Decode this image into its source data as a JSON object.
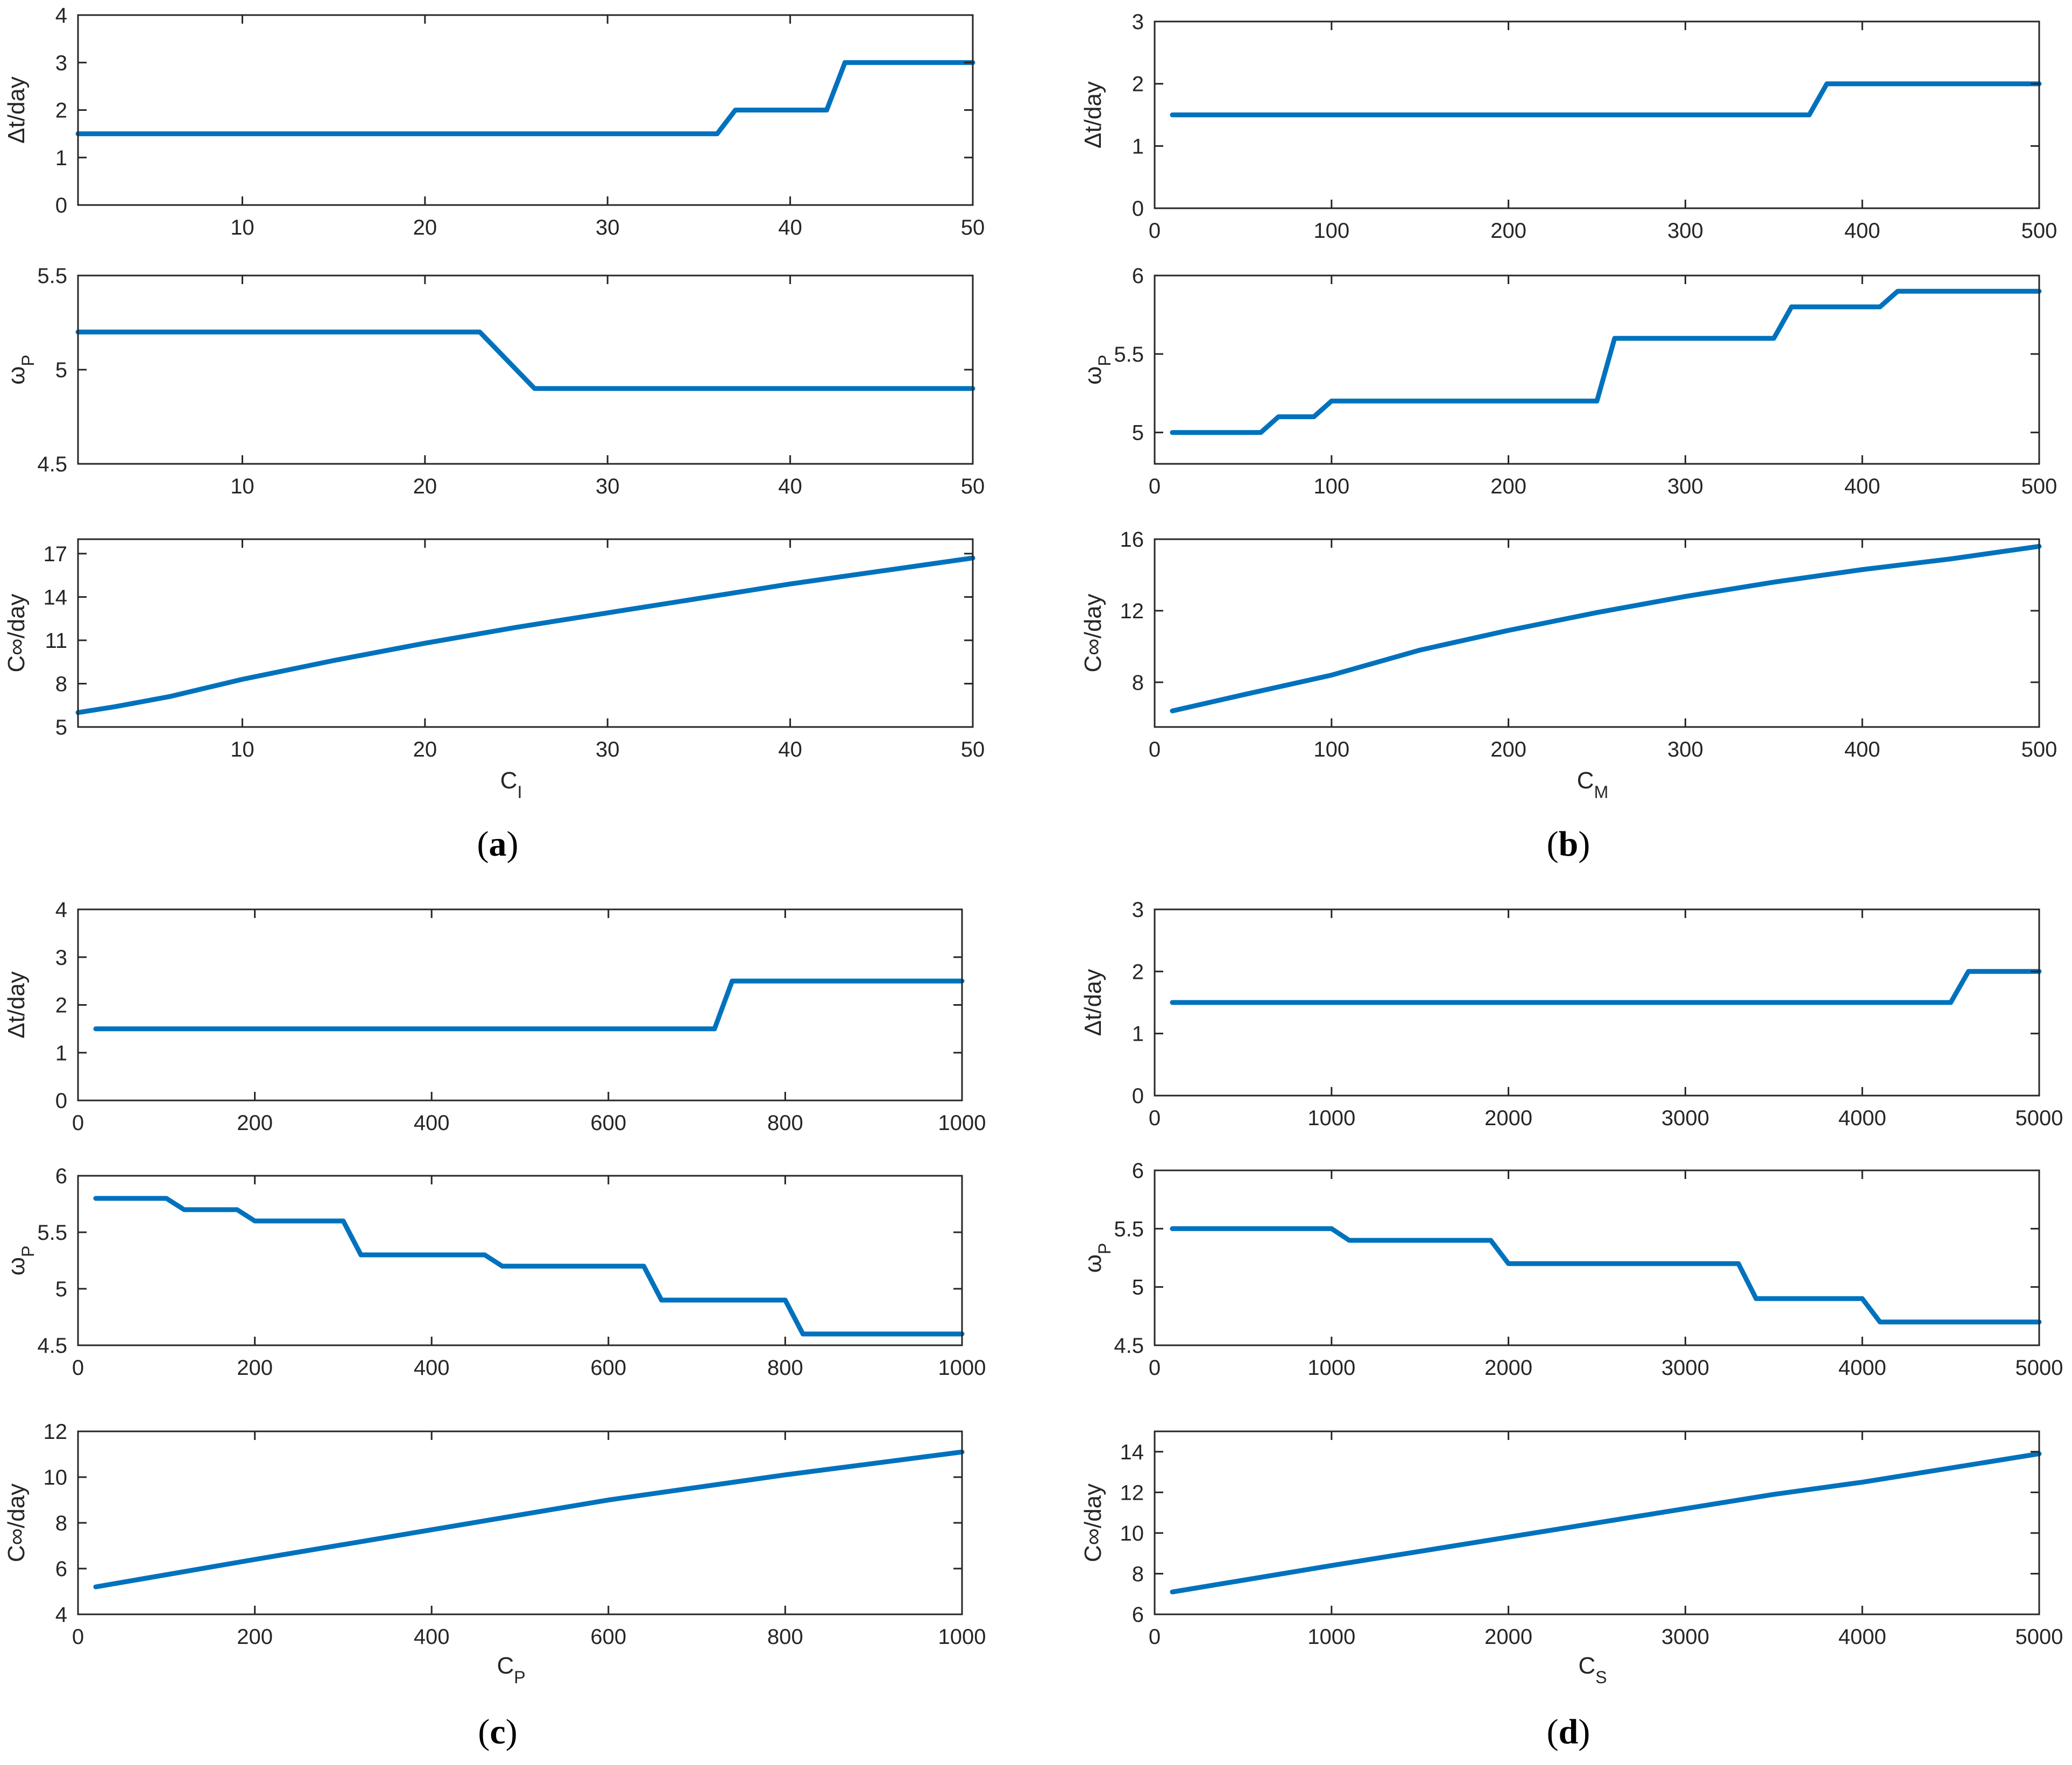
{
  "colors": {
    "series": "#0072BD",
    "axis": "#262626",
    "background": "#ffffff"
  },
  "chart_data": [
    {
      "panel": "a",
      "caption_letter": "a",
      "xlabel_main": "C",
      "xlabel_sub": "I",
      "subplots": [
        {
          "type": "line",
          "ylabel_main": "Δt/day",
          "ylabel_sub": "",
          "xlim": [
            1,
            50
          ],
          "ylim": [
            0,
            4
          ],
          "xticks": [
            10,
            20,
            30,
            40,
            50
          ],
          "yticks": [
            0,
            1,
            2,
            3,
            4
          ],
          "x": [
            1,
            36,
            37,
            42,
            43,
            50
          ],
          "y": [
            1.5,
            1.5,
            2,
            2,
            3,
            3
          ]
        },
        {
          "type": "line",
          "ylabel_main": "ω",
          "ylabel_sub": "P",
          "xlim": [
            1,
            50
          ],
          "ylim": [
            4.5,
            5.5
          ],
          "xticks": [
            10,
            20,
            30,
            40,
            50
          ],
          "yticks": [
            4.5,
            5,
            5.5
          ],
          "x": [
            1,
            23,
            26,
            50
          ],
          "y": [
            5.2,
            5.2,
            4.9,
            4.9
          ]
        },
        {
          "type": "line",
          "ylabel_main": "C∞/day",
          "ylabel_sub": "",
          "xlim": [
            1,
            50
          ],
          "ylim": [
            5,
            18
          ],
          "xticks": [
            10,
            20,
            30,
            40,
            50
          ],
          "yticks": [
            5,
            8,
            11,
            14,
            17
          ],
          "x": [
            1,
            3,
            6,
            10,
            15,
            20,
            25,
            30,
            35,
            40,
            45,
            50
          ],
          "y": [
            6.0,
            6.4,
            7.1,
            8.3,
            9.6,
            10.8,
            11.9,
            12.9,
            13.9,
            14.9,
            15.8,
            16.7
          ]
        }
      ]
    },
    {
      "panel": "b",
      "caption_letter": "b",
      "xlabel_main": "C",
      "xlabel_sub": "M",
      "subplots": [
        {
          "type": "line",
          "ylabel_main": "Δt/day",
          "ylabel_sub": "",
          "xlim": [
            0,
            500
          ],
          "ylim": [
            0,
            3
          ],
          "xticks": [
            0,
            100,
            200,
            300,
            400,
            500
          ],
          "yticks": [
            0,
            1,
            2,
            3
          ],
          "x": [
            10,
            370,
            380,
            500
          ],
          "y": [
            1.5,
            1.5,
            2,
            2
          ]
        },
        {
          "type": "line",
          "ylabel_main": "ω",
          "ylabel_sub": "P",
          "xlim": [
            0,
            500
          ],
          "ylim": [
            4.8,
            6
          ],
          "xticks": [
            0,
            100,
            200,
            300,
            400,
            500
          ],
          "yticks": [
            5,
            5.5,
            6
          ],
          "x": [
            10,
            60,
            70,
            90,
            100,
            250,
            260,
            350,
            360,
            410,
            420,
            500
          ],
          "y": [
            5,
            5,
            5.1,
            5.1,
            5.2,
            5.2,
            5.6,
            5.6,
            5.8,
            5.8,
            5.9,
            5.9
          ]
        },
        {
          "type": "line",
          "ylabel_main": "C∞/day",
          "ylabel_sub": "",
          "xlim": [
            0,
            500
          ],
          "ylim": [
            5.5,
            16
          ],
          "xticks": [
            0,
            100,
            200,
            300,
            400,
            500
          ],
          "yticks": [
            8,
            12,
            16
          ],
          "x": [
            10,
            50,
            100,
            150,
            200,
            250,
            300,
            350,
            400,
            450,
            500
          ],
          "y": [
            6.4,
            7.3,
            8.4,
            9.8,
            10.9,
            11.9,
            12.8,
            13.6,
            14.3,
            14.9,
            15.6
          ]
        }
      ]
    },
    {
      "panel": "c",
      "caption_letter": "c",
      "xlabel_main": "C",
      "xlabel_sub": "P",
      "subplots": [
        {
          "type": "line",
          "ylabel_main": "Δt/day",
          "ylabel_sub": "",
          "xlim": [
            0,
            1000
          ],
          "ylim": [
            0,
            4
          ],
          "xticks": [
            0,
            200,
            400,
            600,
            800,
            1000
          ],
          "yticks": [
            0,
            1,
            2,
            3,
            4
          ],
          "x": [
            20,
            720,
            740,
            1000
          ],
          "y": [
            1.5,
            1.5,
            2.5,
            2.5
          ]
        },
        {
          "type": "line",
          "ylabel_main": "ω",
          "ylabel_sub": "P",
          "xlim": [
            0,
            1000
          ],
          "ylim": [
            4.5,
            6
          ],
          "xticks": [
            0,
            200,
            400,
            600,
            800,
            1000
          ],
          "yticks": [
            4.5,
            5,
            5.5,
            6
          ],
          "x": [
            20,
            100,
            120,
            180,
            200,
            300,
            320,
            460,
            480,
            640,
            660,
            800,
            820,
            1000
          ],
          "y": [
            5.8,
            5.8,
            5.7,
            5.7,
            5.6,
            5.6,
            5.3,
            5.3,
            5.2,
            5.2,
            4.9,
            4.9,
            4.6,
            4.6
          ]
        },
        {
          "type": "line",
          "ylabel_main": "C∞/day",
          "ylabel_sub": "",
          "xlim": [
            0,
            1000
          ],
          "ylim": [
            4,
            12
          ],
          "xticks": [
            0,
            200,
            400,
            600,
            800,
            1000
          ],
          "yticks": [
            4,
            6,
            8,
            10,
            12
          ],
          "x": [
            20,
            200,
            400,
            600,
            800,
            1000
          ],
          "y": [
            5.2,
            6.4,
            7.7,
            9.0,
            10.1,
            11.1
          ]
        }
      ]
    },
    {
      "panel": "d",
      "caption_letter": "d",
      "xlabel_main": "C",
      "xlabel_sub": "S",
      "subplots": [
        {
          "type": "line",
          "ylabel_main": "Δt/day",
          "ylabel_sub": "",
          "xlim": [
            0,
            5000
          ],
          "ylim": [
            0,
            3
          ],
          "xticks": [
            0,
            1000,
            2000,
            3000,
            4000,
            5000
          ],
          "yticks": [
            0,
            1,
            2,
            3
          ],
          "x": [
            100,
            4500,
            4600,
            5000
          ],
          "y": [
            1.5,
            1.5,
            2,
            2
          ]
        },
        {
          "type": "line",
          "ylabel_main": "ω",
          "ylabel_sub": "P",
          "xlim": [
            0,
            5000
          ],
          "ylim": [
            4.5,
            6
          ],
          "xticks": [
            0,
            1000,
            2000,
            3000,
            4000,
            5000
          ],
          "yticks": [
            4.5,
            5,
            5.5,
            6
          ],
          "x": [
            100,
            1000,
            1100,
            1900,
            2000,
            3300,
            3400,
            4000,
            4100,
            5000
          ],
          "y": [
            5.5,
            5.5,
            5.4,
            5.4,
            5.2,
            5.2,
            4.9,
            4.9,
            4.7,
            4.7
          ]
        },
        {
          "type": "line",
          "ylabel_main": "C∞/day",
          "ylabel_sub": "",
          "xlim": [
            0,
            5000
          ],
          "ylim": [
            6,
            15
          ],
          "xticks": [
            0,
            1000,
            2000,
            3000,
            4000,
            5000
          ],
          "yticks": [
            6,
            8,
            10,
            12,
            14
          ],
          "x": [
            100,
            1000,
            1500,
            2000,
            3000,
            3500,
            4000,
            5000
          ],
          "y": [
            7.1,
            8.4,
            9.1,
            9.8,
            11.2,
            11.9,
            12.5,
            13.9
          ]
        }
      ]
    }
  ]
}
